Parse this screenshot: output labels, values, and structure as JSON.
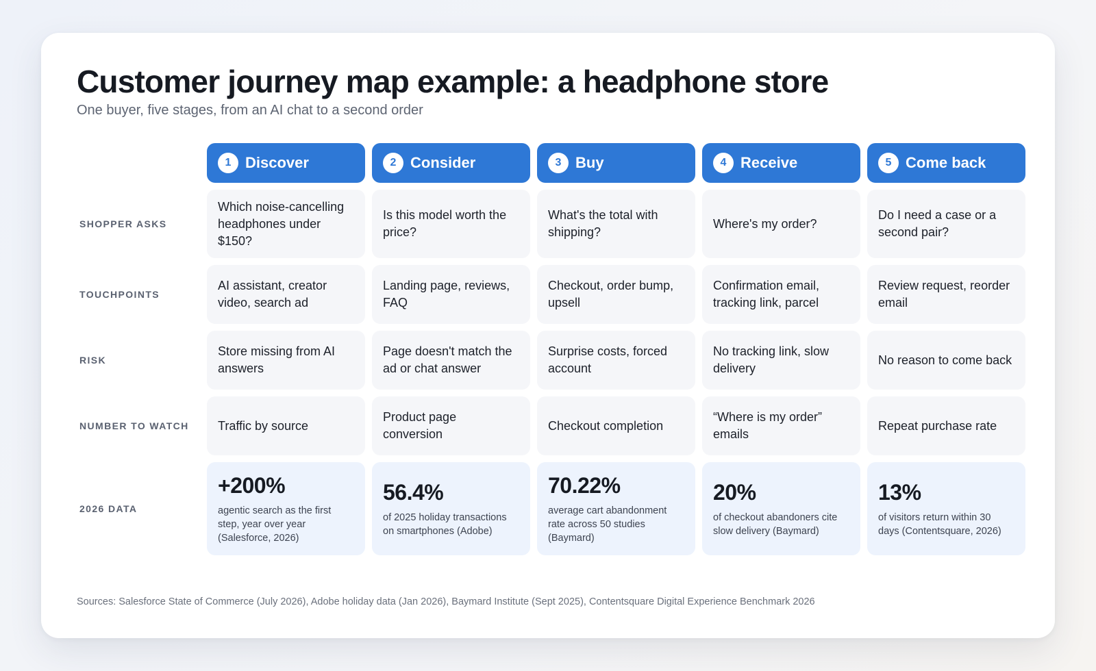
{
  "header": {
    "title": "Customer journey map example: a headphone store",
    "subtitle": "One buyer, five stages, from an AI chat to a second order"
  },
  "colors": {
    "accent": "#2e78d6",
    "cell_bg": "#f5f6f9",
    "data_bg": "#edf3fd"
  },
  "stages": [
    {
      "number": "1",
      "label": "Discover"
    },
    {
      "number": "2",
      "label": "Consider"
    },
    {
      "number": "3",
      "label": "Buy"
    },
    {
      "number": "4",
      "label": "Receive"
    },
    {
      "number": "5",
      "label": "Come back"
    }
  ],
  "rows": [
    {
      "label": "SHOPPER ASKS",
      "cells": [
        "Which noise-cancelling headphones under $150?",
        "Is this model worth the price?",
        "What's the total with shipping?",
        "Where's my order?",
        "Do I need a case or a second pair?"
      ]
    },
    {
      "label": "TOUCHPOINTS",
      "cells": [
        "AI assistant, creator video, search ad",
        "Landing page, reviews, FAQ",
        "Checkout, order bump, upsell",
        "Confirmation email, tracking link, parcel",
        "Review request, reorder email"
      ]
    },
    {
      "label": "RISK",
      "cells": [
        "Store missing from AI answers",
        "Page doesn't match the ad or chat answer",
        "Surprise costs, forced account",
        "No tracking link, slow delivery",
        "No reason to come back"
      ]
    },
    {
      "label": "NUMBER TO WATCH",
      "cells": [
        "Traffic by source",
        "Product page conversion",
        "Checkout completion",
        "“Where is my order” emails",
        "Repeat purchase rate"
      ]
    }
  ],
  "data_row": {
    "label": "2026 DATA",
    "cells": [
      {
        "value": "+200%",
        "note": "agentic search as the first step, year over year (Salesforce, 2026)"
      },
      {
        "value": "56.4%",
        "note": "of 2025 holiday transactions on smartphones (Adobe)"
      },
      {
        "value": "70.22%",
        "note": "average cart abandonment rate across 50 studies (Baymard)"
      },
      {
        "value": "20%",
        "note": "of checkout abandoners cite slow delivery (Baymard)"
      },
      {
        "value": "13%",
        "note": "of visitors return within 30 days (Contentsquare, 2026)"
      }
    ]
  },
  "sources": "Sources: Salesforce State of Commerce (July 2026), Adobe holiday data (Jan 2026), Baymard Institute (Sept 2025), Contentsquare Digital Experience Benchmark 2026"
}
